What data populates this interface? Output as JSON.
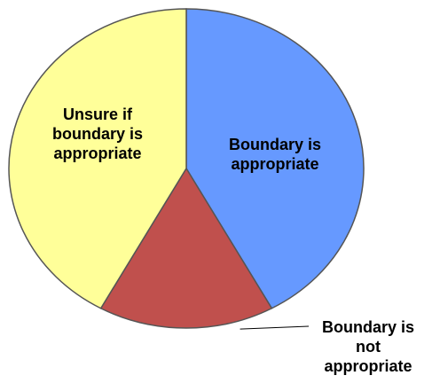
{
  "chart_data": {
    "type": "pie",
    "categories": [
      "Boundary is appropriate",
      "Boundary is not appropriate",
      "Unsure if boundary is appropriate"
    ],
    "values": [
      42,
      16,
      42
    ],
    "colors": [
      "#6699ff",
      "#c0504d",
      "#ffff99"
    ]
  }
}
